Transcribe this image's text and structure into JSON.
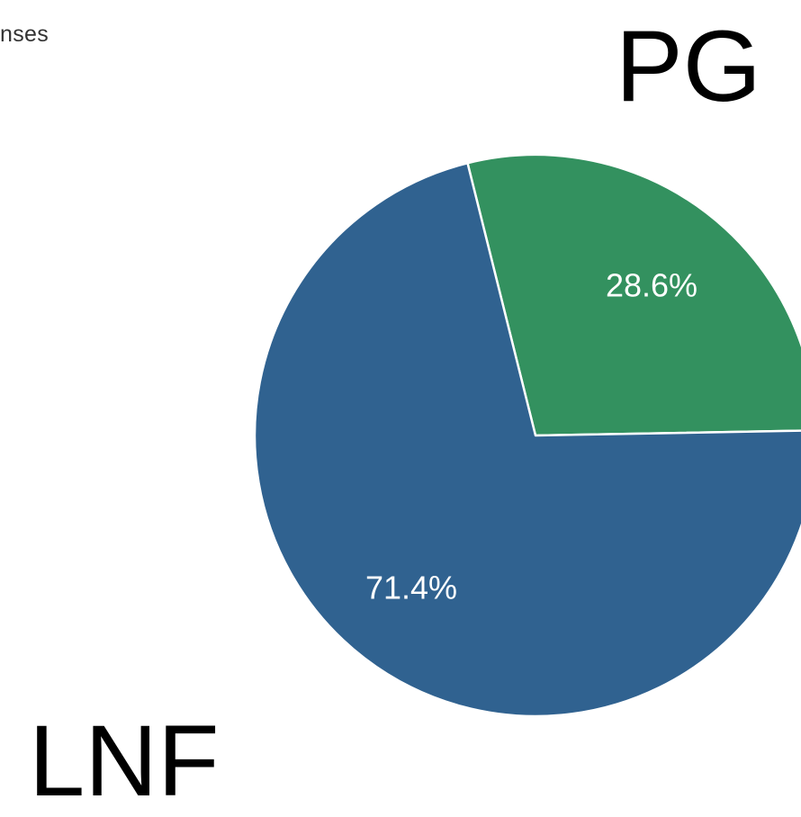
{
  "caption_fragment": "nses",
  "big_labels": {
    "top": "PG",
    "bottom": "LNF"
  },
  "chart_data": {
    "type": "pie",
    "slices": [
      {
        "value": 28.6,
        "label": "28.6%",
        "color": "#33915f"
      },
      {
        "value": 71.4,
        "label": "71.4%",
        "color": "#306290"
      }
    ],
    "start_angle_deg": -14,
    "direction": "clockwise",
    "slice_border_color": "#ffffff"
  }
}
